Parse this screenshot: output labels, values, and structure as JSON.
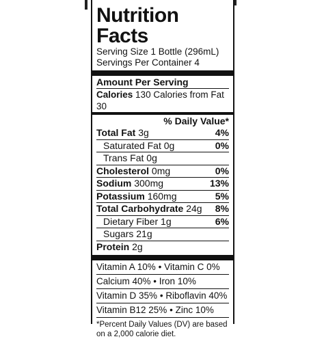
{
  "label": {
    "title": "Nutrition Facts",
    "serving_size": "Serving Size 1 Bottle (296mL)",
    "servings_per_container": "Servings Per Container 4",
    "amount_per_serving": "Amount Per Serving",
    "calories_label": "Calories",
    "calories_value": "130",
    "calories_from_fat": "Calories from Fat 30",
    "daily_value_header": "% Daily Value*",
    "nutrients": [
      {
        "name": "Total Fat",
        "amount": "3g",
        "pct": "4%",
        "bold": true,
        "indent": false
      },
      {
        "name": "Saturated Fat",
        "amount": "0g",
        "pct": "0%",
        "bold": false,
        "indent": true
      },
      {
        "name": "Trans Fat",
        "amount": "0g",
        "pct": "",
        "bold": false,
        "indent": true
      },
      {
        "name": "Cholesterol",
        "amount": "0mg",
        "pct": "0%",
        "bold": true,
        "indent": false
      },
      {
        "name": "Sodium",
        "amount": "300mg",
        "pct": "13%",
        "bold": true,
        "indent": false
      },
      {
        "name": "Potassium",
        "amount": "160mg",
        "pct": "5%",
        "bold": true,
        "indent": false
      },
      {
        "name": "Total Carbohydrate",
        "amount": "24g",
        "pct": "8%",
        "bold": true,
        "indent": false
      },
      {
        "name": "Dietary Fiber",
        "amount": "1g",
        "pct": "6%",
        "bold": false,
        "indent": true
      },
      {
        "name": "Sugars",
        "amount": "21g",
        "pct": "",
        "bold": false,
        "indent": true
      },
      {
        "name": "Protein",
        "amount": "2g",
        "pct": "",
        "bold": true,
        "indent": false
      }
    ],
    "vitamins": [
      {
        "left": "Vitamin A 10%",
        "right": "Vitamin C 0%"
      },
      {
        "left": "Calcium 40%",
        "right": "Iron 10%"
      },
      {
        "left": "Vitamin D 35%",
        "right": "Riboflavin 40%"
      },
      {
        "left": "Vitamin B12 25%",
        "right": "Zinc 10%"
      }
    ],
    "bullet": "•",
    "footnote": "*Percent Daily Values (DV) are based on a 2,000 calorie diet."
  }
}
